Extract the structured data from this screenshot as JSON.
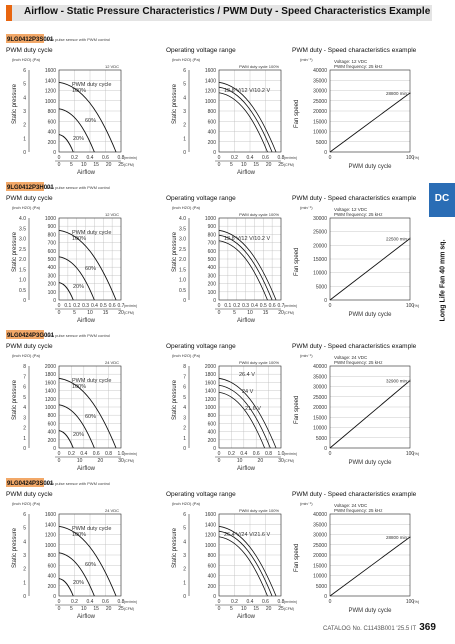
{
  "header": {
    "title": "Airflow - Static Pressure Characteristics / PWM Duty - Speed Characteristics Example"
  },
  "side_tab": {
    "label": "DC",
    "text": "Long Life Fan 40 mm sq."
  },
  "footer": {
    "catalog": "CATALOG No. C1143B001 '25.5 IT",
    "page": "369"
  },
  "colors": {
    "accent": "#e8650f",
    "tab": "#2a6db5",
    "band": "#e4e4e4",
    "model_bar": "#f2a868"
  },
  "labels": {
    "pwm_title": "PWM duty cycle",
    "ov_title": "Operating voltage range",
    "sp_title": "PWM duty - Speed characteristics example",
    "static_pressure": "Static pressure",
    "airflow": "Airflow",
    "fan_speed": "Fan speed",
    "pwm_duty": "PWM duty cycle",
    "inch_pa": "(inch H2O)  (Pa)",
    "min_unit": "(min⁻¹)",
    "pct": "(%)",
    "m3min": "(m³/min)",
    "cfm": "(CFM)",
    "duty100": "PWM duty cycle 100%",
    "duty_label": "PWM duty cycle",
    "duty_pct": "100%",
    "d60": "60%",
    "d20": "20%"
  },
  "models": [
    {
      "model": "9LG0412P3S001",
      "note": "With pulse sensor with PWM control",
      "volt": "12 VDC",
      "pa": [
        "1600",
        "1400",
        "1200",
        "1000",
        "800",
        "600",
        "400",
        "200",
        "0"
      ],
      "inch": [
        "6",
        "5",
        "4",
        "3",
        "2",
        "1",
        "0"
      ],
      "m3": [
        "0",
        "0.2",
        "0.4",
        "0.6",
        "0.8"
      ],
      "cfm": [
        "0",
        "5",
        "10",
        "15",
        "20",
        "25"
      ],
      "ov": [
        "13.8 V/12 V/10.2 V"
      ],
      "sp_v": "Voltage: 12 VDC",
      "sp_f": "PWM frequency: 25 kHz",
      "sp_ticks": [
        "40000",
        "35000",
        "30000",
        "25000",
        "20000",
        "15000",
        "10000",
        "5000",
        "0"
      ],
      "sp_max": "28800 min⁻¹",
      "pwm": [
        0,
        100
      ],
      "speed": [
        0,
        28800
      ],
      "ymax": 40000,
      "sp_x": [
        "0",
        "100"
      ]
    },
    {
      "model": "9LG0412P3H001",
      "note": "With pulse sensor with PWM control",
      "volt": "12 VDC",
      "pa": [
        "1000",
        "900",
        "800",
        "700",
        "600",
        "500",
        "400",
        "300",
        "200",
        "100",
        "0"
      ],
      "inch": [
        "4.0",
        "3.5",
        "3.0",
        "2.5",
        "2.0",
        "1.5",
        "1.0",
        "0.5",
        "0"
      ],
      "m3": [
        "0",
        "0.1",
        "0.2",
        "0.3",
        "0.4",
        "0.5",
        "0.6",
        "0.7"
      ],
      "cfm": [
        "0",
        "5",
        "10",
        "15",
        "20"
      ],
      "ov": [
        "13.8 V/12 V/10.2 V"
      ],
      "sp_v": "Voltage: 12 VDC",
      "sp_f": "PWM frequency: 25 kHz",
      "sp_ticks": [
        "30000",
        "25000",
        "20000",
        "15000",
        "10000",
        "5000",
        "0"
      ],
      "sp_max": "22500 min⁻¹",
      "pwm": [
        0,
        100
      ],
      "speed": [
        0,
        22500
      ],
      "ymax": 30000,
      "sp_x": [
        "0",
        "100"
      ]
    },
    {
      "model": "9LG0424P3G001",
      "note": "With pulse sensor with PWM control",
      "volt": "24 VDC",
      "pa": [
        "2000",
        "1800",
        "1600",
        "1400",
        "1200",
        "1000",
        "800",
        "600",
        "400",
        "200",
        "0"
      ],
      "inch": [
        "8",
        "7",
        "6",
        "5",
        "4",
        "3",
        "2",
        "1",
        "0"
      ],
      "m3": [
        "0",
        "0.2",
        "0.4",
        "0.6",
        "0.8",
        "1.0"
      ],
      "cfm": [
        "0",
        "10",
        "20",
        "30"
      ],
      "ov": [
        "26.4 V",
        "24 V",
        "21.6 V"
      ],
      "sp_v": "Voltage: 24 VDC",
      "sp_f": "PWM frequency: 25 kHz",
      "sp_ticks": [
        "40000",
        "35000",
        "30000",
        "25000",
        "20000",
        "15000",
        "10000",
        "5000",
        "0"
      ],
      "sp_max": "32900 min⁻¹",
      "pwm": [
        0,
        100
      ],
      "speed": [
        0,
        32900
      ],
      "ymax": 40000,
      "sp_x": [
        "0",
        "100"
      ]
    },
    {
      "model": "9LG0424P3S001",
      "note": "With pulse sensor with PWM control",
      "volt": "24 VDC",
      "pa": [
        "1600",
        "1400",
        "1200",
        "1000",
        "800",
        "600",
        "400",
        "200",
        "0"
      ],
      "inch": [
        "6",
        "5",
        "4",
        "3",
        "2",
        "1",
        "0"
      ],
      "m3": [
        "0",
        "0.2",
        "0.4",
        "0.6",
        "0.8"
      ],
      "cfm": [
        "0",
        "5",
        "10",
        "15",
        "20",
        "25"
      ],
      "ov": [
        "26.4 V/24 V/21.6 V"
      ],
      "sp_v": "Voltage: 24 VDC",
      "sp_f": "PWM frequency: 25 kHz",
      "sp_ticks": [
        "40000",
        "35000",
        "30000",
        "25000",
        "20000",
        "15000",
        "10000",
        "5000",
        "0"
      ],
      "sp_max": "28800 min⁻¹",
      "pwm": [
        0,
        100
      ],
      "speed": [
        0,
        28800
      ],
      "ymax": 40000,
      "sp_x": [
        "0",
        "100"
      ]
    }
  ]
}
